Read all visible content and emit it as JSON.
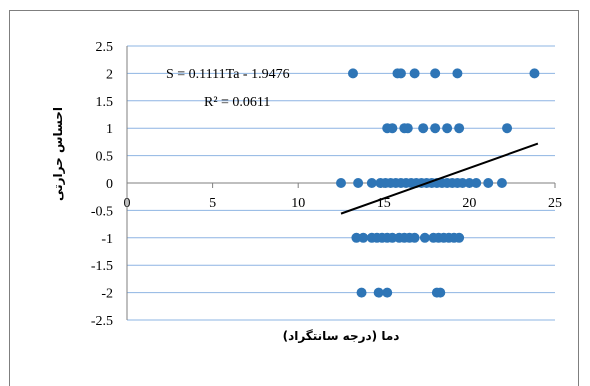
{
  "chart_data": {
    "type": "scatter",
    "title": "",
    "xlabel": "دما (درجه سانتگراد)",
    "ylabel": "احساس حرارتی",
    "xlim": [
      0,
      25
    ],
    "ylim": [
      -2.5,
      2.5
    ],
    "x_ticks": [
      "0",
      "5",
      "10",
      "15",
      "20",
      "25"
    ],
    "y_ticks": [
      "2.5",
      "2",
      "1.5",
      "1",
      "0.5",
      "0",
      "-0.5",
      "-1",
      "-1.5",
      "-2",
      "-2.5"
    ],
    "grid": "horizontal",
    "marker_color": "#2E75B6",
    "trendline_color": "#000000",
    "annotations": {
      "equation": "S = 0.1111Ta - 1.9476",
      "r_squared": "R² = 0.0611"
    },
    "trendline": {
      "slope": 0.1111,
      "intercept": -1.9476,
      "x_range": [
        12.5,
        24
      ]
    },
    "points": [
      {
        "x": 13.2,
        "y": 2
      },
      {
        "x": 15.8,
        "y": 2
      },
      {
        "x": 16.0,
        "y": 2
      },
      {
        "x": 16.8,
        "y": 2
      },
      {
        "x": 18.0,
        "y": 2
      },
      {
        "x": 19.3,
        "y": 2
      },
      {
        "x": 23.8,
        "y": 2
      },
      {
        "x": 15.2,
        "y": 1
      },
      {
        "x": 15.5,
        "y": 1
      },
      {
        "x": 16.2,
        "y": 1
      },
      {
        "x": 16.4,
        "y": 1
      },
      {
        "x": 17.3,
        "y": 1
      },
      {
        "x": 18.0,
        "y": 1
      },
      {
        "x": 18.7,
        "y": 1
      },
      {
        "x": 19.4,
        "y": 1
      },
      {
        "x": 22.2,
        "y": 1
      },
      {
        "x": 12.5,
        "y": 0
      },
      {
        "x": 13.5,
        "y": 0
      },
      {
        "x": 14.3,
        "y": 0
      },
      {
        "x": 14.8,
        "y": 0
      },
      {
        "x": 15.1,
        "y": 0
      },
      {
        "x": 15.4,
        "y": 0
      },
      {
        "x": 15.7,
        "y": 0
      },
      {
        "x": 16.0,
        "y": 0
      },
      {
        "x": 16.3,
        "y": 0
      },
      {
        "x": 16.6,
        "y": 0
      },
      {
        "x": 16.9,
        "y": 0
      },
      {
        "x": 17.2,
        "y": 0
      },
      {
        "x": 17.5,
        "y": 0
      },
      {
        "x": 17.8,
        "y": 0
      },
      {
        "x": 18.1,
        "y": 0
      },
      {
        "x": 18.4,
        "y": 0
      },
      {
        "x": 18.7,
        "y": 0
      },
      {
        "x": 19.0,
        "y": 0
      },
      {
        "x": 19.3,
        "y": 0
      },
      {
        "x": 19.6,
        "y": 0
      },
      {
        "x": 20.0,
        "y": 0
      },
      {
        "x": 20.4,
        "y": 0
      },
      {
        "x": 21.1,
        "y": 0
      },
      {
        "x": 21.9,
        "y": 0
      },
      {
        "x": 13.4,
        "y": -1
      },
      {
        "x": 13.8,
        "y": -1
      },
      {
        "x": 14.3,
        "y": -1
      },
      {
        "x": 14.6,
        "y": -1
      },
      {
        "x": 14.9,
        "y": -1
      },
      {
        "x": 15.2,
        "y": -1
      },
      {
        "x": 15.5,
        "y": -1
      },
      {
        "x": 15.9,
        "y": -1
      },
      {
        "x": 16.2,
        "y": -1
      },
      {
        "x": 16.5,
        "y": -1
      },
      {
        "x": 16.8,
        "y": -1
      },
      {
        "x": 17.4,
        "y": -1
      },
      {
        "x": 17.9,
        "y": -1
      },
      {
        "x": 18.2,
        "y": -1
      },
      {
        "x": 18.5,
        "y": -1
      },
      {
        "x": 18.8,
        "y": -1
      },
      {
        "x": 19.1,
        "y": -1
      },
      {
        "x": 19.4,
        "y": -1
      },
      {
        "x": 13.7,
        "y": -2
      },
      {
        "x": 14.7,
        "y": -2
      },
      {
        "x": 15.2,
        "y": -2
      },
      {
        "x": 18.1,
        "y": -2
      },
      {
        "x": 18.3,
        "y": -2
      }
    ]
  }
}
